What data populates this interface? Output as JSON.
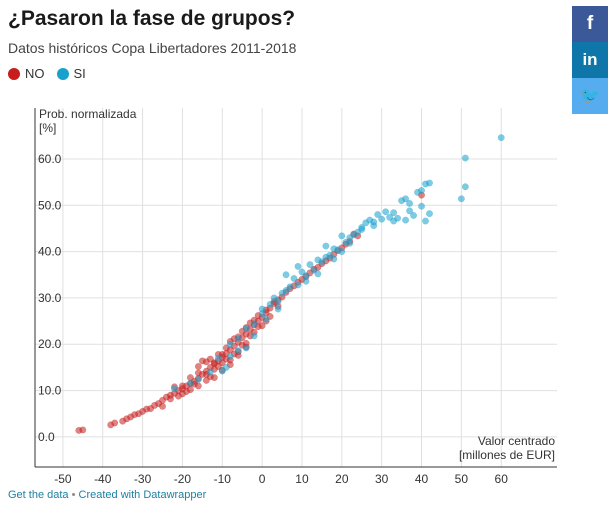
{
  "header": {
    "title": "¿Pasaron la fase de grupos?",
    "subtitle": "Datos históricos Copa Libertadores 2011-2018"
  },
  "legend": [
    {
      "label": "NO",
      "color": "#c71e1d"
    },
    {
      "label": "SI",
      "color": "#18a1cd"
    }
  ],
  "share": {
    "facebook": {
      "label": "f",
      "icon": "facebook-icon"
    },
    "linkedin": {
      "label": "in",
      "icon": "linkedin-icon"
    },
    "twitter": {
      "label": "🐦",
      "icon": "twitter-icon"
    }
  },
  "footer": {
    "get_data": "Get the data",
    "separator": "•",
    "created_with": "Created with Datawrapper"
  },
  "chart_data": {
    "type": "scatter",
    "ylabel_lines": [
      "Prob. normalizada",
      "[%]"
    ],
    "xlabel_lines": [
      "Valor centrado",
      "[millones de EUR]"
    ],
    "xlim": [
      -57,
      74
    ],
    "ylim": [
      -6.5,
      71
    ],
    "x_ticks": [
      -50,
      -40,
      -30,
      -20,
      -10,
      0,
      10,
      20,
      30,
      40,
      50,
      60
    ],
    "x_tick_labels": [
      "-50",
      "-40",
      "-30",
      "-20",
      "-10",
      "0",
      "10",
      "20",
      "30",
      "40",
      "50",
      "60"
    ],
    "y_ticks": [
      0,
      10,
      20,
      30,
      40,
      50,
      60
    ],
    "y_tick_labels": [
      "0.0",
      "10.0",
      "20.0",
      "30.0",
      "40.0",
      "50.0",
      "60.0"
    ],
    "grid": true,
    "series": [
      {
        "name": "NO",
        "color": "#c71e1d",
        "points": [
          [
            -46,
            1.4
          ],
          [
            -45,
            1.5
          ],
          [
            -38,
            2.6
          ],
          [
            -37,
            3.0
          ],
          [
            -35,
            3.4
          ],
          [
            -34,
            3.9
          ],
          [
            -33,
            4.3
          ],
          [
            -32,
            4.8
          ],
          [
            -31,
            5.0
          ],
          [
            -30,
            5.5
          ],
          [
            -29,
            6.0
          ],
          [
            -28,
            6.1
          ],
          [
            -27,
            6.8
          ],
          [
            -26,
            7.2
          ],
          [
            -25,
            7.9
          ],
          [
            -24,
            8.6
          ],
          [
            -23,
            9.0
          ],
          [
            -22,
            9.4
          ],
          [
            -21,
            10.0
          ],
          [
            -20,
            10.4
          ],
          [
            -19,
            11.0
          ],
          [
            -18,
            11.5
          ],
          [
            -17,
            12.0
          ],
          [
            -16,
            12.6
          ],
          [
            -15,
            13.5
          ],
          [
            -14,
            14.2
          ],
          [
            -13,
            15.0
          ],
          [
            -12,
            15.8
          ],
          [
            -11,
            16.4
          ],
          [
            -10,
            17.2
          ],
          [
            -9,
            18.0
          ],
          [
            -8,
            18.8
          ],
          [
            -7,
            19.6
          ],
          [
            -6,
            20.4
          ],
          [
            -5,
            21.4
          ],
          [
            -4,
            22.2
          ],
          [
            -3,
            23.2
          ],
          [
            -2,
            24.2
          ],
          [
            -1,
            25.0
          ],
          [
            0,
            25.8
          ],
          [
            1,
            26.8
          ],
          [
            2,
            27.8
          ],
          [
            3,
            28.8
          ],
          [
            4,
            29.6
          ],
          [
            6,
            31.2
          ],
          [
            8,
            32.6
          ],
          [
            10,
            34.0
          ],
          [
            12,
            35.4
          ],
          [
            14,
            36.6
          ],
          [
            16,
            38.0
          ],
          [
            18,
            39.4
          ],
          [
            20,
            40.8
          ],
          [
            22,
            42.2
          ],
          [
            24,
            43.4
          ],
          [
            -22,
            10.8
          ],
          [
            -20,
            9.3
          ],
          [
            -18,
            10.2
          ],
          [
            -16,
            13.8
          ],
          [
            -14,
            13.5
          ],
          [
            -12,
            14.6
          ],
          [
            -10,
            16.0
          ],
          [
            -8,
            16.6
          ],
          [
            -6,
            18.4
          ],
          [
            -4,
            20.2
          ],
          [
            -2,
            22.6
          ],
          [
            0,
            24.0
          ],
          [
            2,
            26.0
          ],
          [
            4,
            28.2
          ],
          [
            -15,
            16.4
          ],
          [
            -13,
            16.8
          ],
          [
            -11,
            17.8
          ],
          [
            -9,
            19.2
          ],
          [
            -7,
            21.2
          ],
          [
            -5,
            22.8
          ],
          [
            -3,
            24.6
          ],
          [
            -1,
            26.2
          ],
          [
            1,
            27.4
          ],
          [
            3,
            29.2
          ],
          [
            -25,
            6.6
          ],
          [
            -23,
            8.2
          ],
          [
            -21,
            8.8
          ],
          [
            -19,
            9.8
          ],
          [
            -17,
            11.4
          ],
          [
            -16,
            11.0
          ],
          [
            -14,
            12.2
          ],
          [
            -12,
            12.8
          ],
          [
            -10,
            14.4
          ],
          [
            -8,
            15.6
          ],
          [
            -6,
            17.6
          ],
          [
            -4,
            19.4
          ],
          [
            -13,
            13.0
          ],
          [
            -11,
            15.2
          ],
          [
            -9,
            16.8
          ],
          [
            -7,
            17.9
          ],
          [
            -5,
            19.8
          ],
          [
            -3,
            21.8
          ],
          [
            -1,
            23.8
          ],
          [
            1,
            25.0
          ],
          [
            5,
            30.2
          ],
          [
            7,
            32.0
          ],
          [
            9,
            33.4
          ],
          [
            11,
            34.6
          ],
          [
            13,
            36.2
          ],
          [
            15,
            37.4
          ],
          [
            17,
            38.6
          ],
          [
            19,
            40.2
          ],
          [
            21,
            41.6
          ],
          [
            23,
            43.8
          ],
          [
            40,
            52.2
          ],
          [
            -20,
            11.0
          ],
          [
            -18,
            12.8
          ],
          [
            -16,
            15.2
          ],
          [
            -14,
            16.2
          ],
          [
            -12,
            16.0
          ],
          [
            -10,
            17.8
          ],
          [
            -8,
            20.6
          ],
          [
            -6,
            21.6
          ],
          [
            -4,
            23.6
          ],
          [
            -2,
            25.2
          ]
        ]
      },
      {
        "name": "SI",
        "color": "#18a1cd",
        "points": [
          [
            -22,
            10.4
          ],
          [
            -18,
            11.6
          ],
          [
            -16,
            12.4
          ],
          [
            -13,
            14.0
          ],
          [
            -11,
            17.0
          ],
          [
            -9,
            15.0
          ],
          [
            -8,
            20.0
          ],
          [
            -6,
            21.2
          ],
          [
            -4,
            23.4
          ],
          [
            -2,
            24.4
          ],
          [
            0,
            26.6
          ],
          [
            0,
            27.6
          ],
          [
            1,
            25.4
          ],
          [
            2,
            28.6
          ],
          [
            3,
            30.0
          ],
          [
            4,
            29.2
          ],
          [
            5,
            31.0
          ],
          [
            6,
            35.0
          ],
          [
            7,
            32.4
          ],
          [
            8,
            34.2
          ],
          [
            9,
            36.8
          ],
          [
            10,
            35.6
          ],
          [
            11,
            33.6
          ],
          [
            12,
            37.2
          ],
          [
            13,
            36.0
          ],
          [
            14,
            38.2
          ],
          [
            15,
            37.8
          ],
          [
            16,
            41.2
          ],
          [
            17,
            39.2
          ],
          [
            18,
            40.6
          ],
          [
            19,
            40.4
          ],
          [
            20,
            43.4
          ],
          [
            21,
            42.0
          ],
          [
            22,
            41.8
          ],
          [
            23,
            43.6
          ],
          [
            24,
            44.2
          ],
          [
            25,
            44.8
          ],
          [
            26,
            46.2
          ],
          [
            27,
            46.8
          ],
          [
            28,
            46.4
          ],
          [
            29,
            48.0
          ],
          [
            30,
            47.0
          ],
          [
            31,
            48.6
          ],
          [
            32,
            47.4
          ],
          [
            33,
            48.4
          ],
          [
            34,
            47.2
          ],
          [
            35,
            51.0
          ],
          [
            36,
            51.4
          ],
          [
            37,
            50.4
          ],
          [
            37,
            48.8
          ],
          [
            38,
            47.8
          ],
          [
            39,
            52.8
          ],
          [
            40,
            53.2
          ],
          [
            41,
            54.6
          ],
          [
            42,
            54.8
          ],
          [
            41,
            46.6
          ],
          [
            42,
            48.2
          ],
          [
            40,
            49.8
          ],
          [
            36,
            46.8
          ],
          [
            33,
            46.6
          ],
          [
            50,
            51.4
          ],
          [
            51,
            54.0
          ],
          [
            51,
            60.2
          ],
          [
            60,
            64.6
          ],
          [
            -10,
            14.2
          ],
          [
            -6,
            18.6
          ],
          [
            -2,
            21.8
          ],
          [
            4,
            27.6
          ],
          [
            6,
            31.6
          ],
          [
            9,
            32.8
          ],
          [
            11,
            34.8
          ],
          [
            14,
            35.2
          ],
          [
            16,
            38.8
          ],
          [
            18,
            38.4
          ],
          [
            20,
            40.0
          ],
          [
            22,
            43.0
          ],
          [
            25,
            45.2
          ],
          [
            28,
            45.6
          ],
          [
            -8,
            17.4
          ],
          [
            -4,
            19.2
          ]
        ]
      }
    ]
  }
}
